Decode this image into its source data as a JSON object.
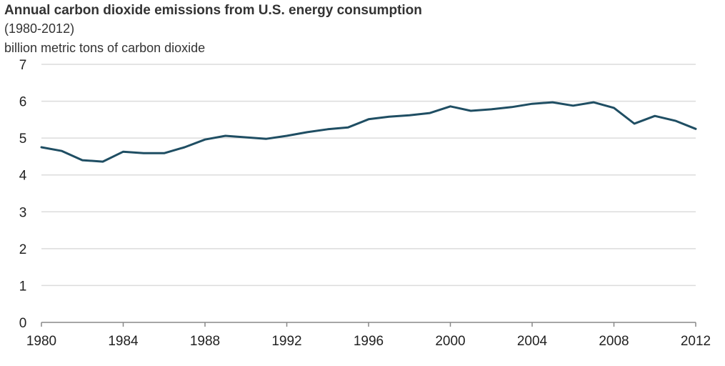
{
  "chart_data": {
    "type": "line",
    "title": "Annual carbon dioxide emissions from U.S. energy consumption",
    "subtitle": "(1980-2012)",
    "ylabel": "billion metric tons of carbon dioxide",
    "xlabel": "",
    "xlim": [
      1980,
      2012
    ],
    "ylim": [
      0,
      7
    ],
    "grid": true,
    "x_ticks": [
      "1980",
      "1984",
      "1988",
      "1992",
      "1996",
      "2000",
      "2004",
      "2008",
      "2012"
    ],
    "y_ticks": [
      "0",
      "1",
      "2",
      "3",
      "4",
      "5",
      "6",
      "7"
    ],
    "series": [
      {
        "name": "CO2 emissions",
        "color": "#1f4e63",
        "x": [
          1980,
          1981,
          1982,
          1983,
          1984,
          1985,
          1986,
          1987,
          1988,
          1989,
          1990,
          1991,
          1992,
          1993,
          1994,
          1995,
          1996,
          1997,
          1998,
          1999,
          2000,
          2001,
          2002,
          2003,
          2004,
          2005,
          2006,
          2007,
          2008,
          2009,
          2010,
          2011,
          2012
        ],
        "values": [
          4.75,
          4.65,
          4.4,
          4.36,
          4.63,
          4.59,
          4.59,
          4.75,
          4.96,
          5.06,
          5.02,
          4.98,
          5.06,
          5.16,
          5.24,
          5.29,
          5.51,
          5.58,
          5.62,
          5.68,
          5.86,
          5.74,
          5.78,
          5.84,
          5.93,
          5.97,
          5.88,
          5.97,
          5.82,
          5.39,
          5.6,
          5.47,
          5.25
        ]
      }
    ]
  }
}
